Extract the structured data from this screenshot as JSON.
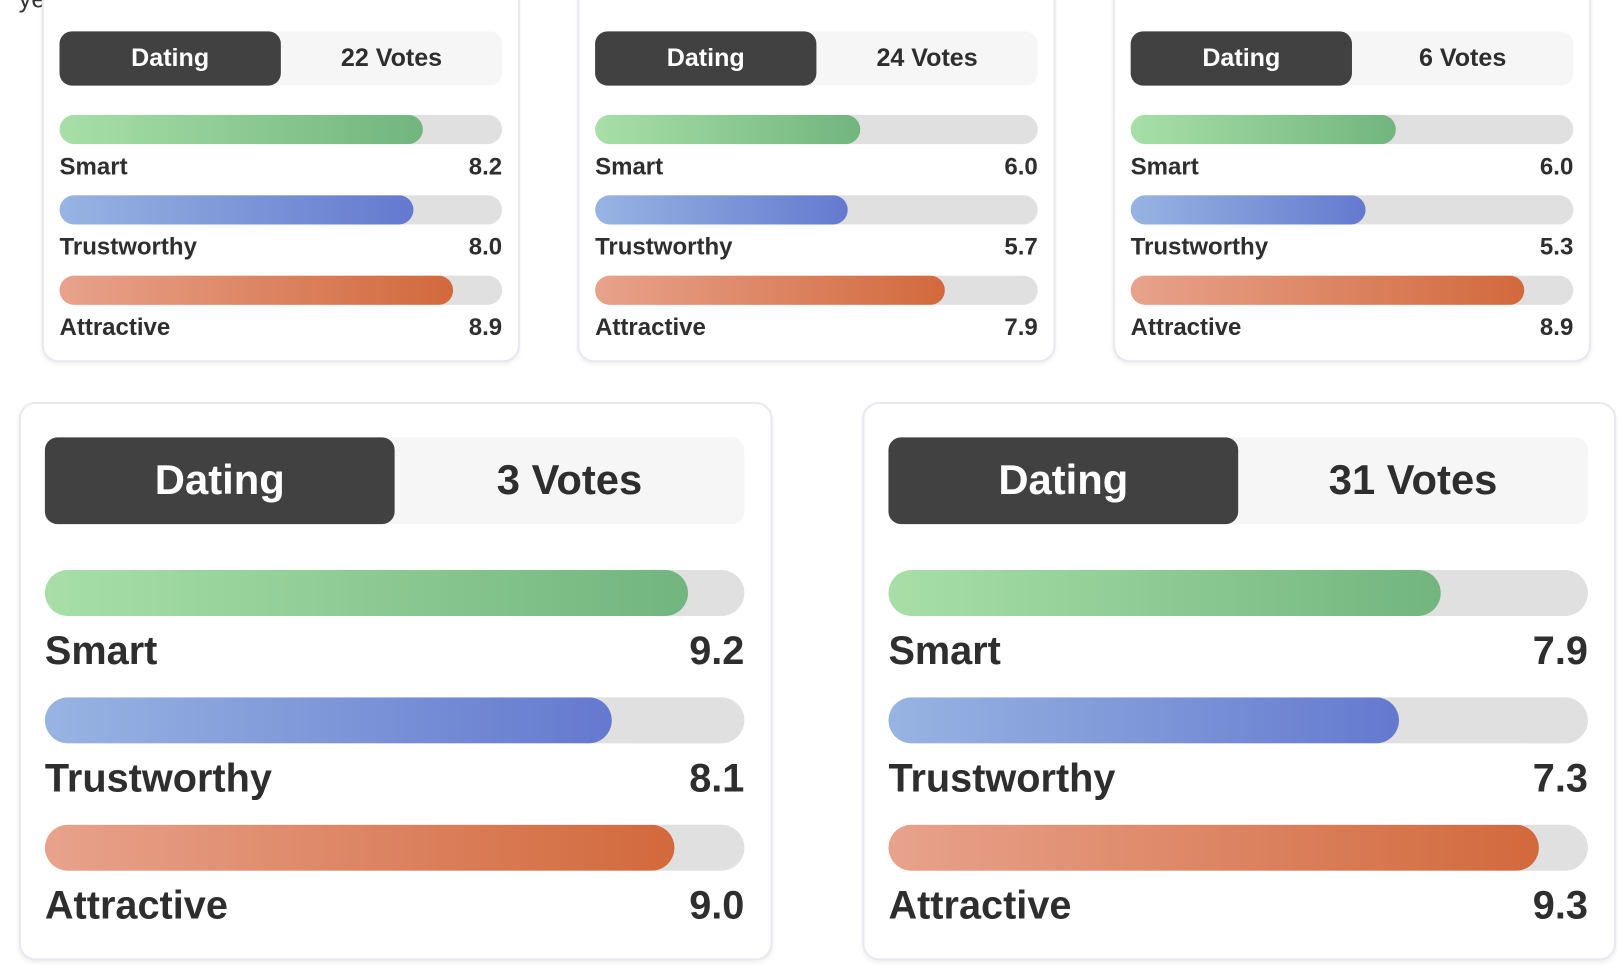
{
  "caption": "yeah.",
  "xlim": [
    0,
    10
  ],
  "colors": [
    [
      "#a8dfa8",
      "#72b57e"
    ],
    [
      "#97b4e2",
      "#6479cf"
    ],
    [
      "#e8a28c",
      "#d2693c"
    ]
  ],
  "cards": [
    {
      "category": "Dating",
      "votes": "22 Votes",
      "ratings": [
        {
          "name": "Smart",
          "value": 8.2,
          "label": "8.2"
        },
        {
          "name": "Trustworthy",
          "value": 8,
          "label": "8.0"
        },
        {
          "name": "Attractive",
          "value": 8.9,
          "label": "8.9"
        }
      ]
    },
    {
      "category": "Dating",
      "votes": "24 Votes",
      "ratings": [
        {
          "name": "Smart",
          "value": 6,
          "label": "6.0"
        },
        {
          "name": "Trustworthy",
          "value": 5.7,
          "label": "5.7"
        },
        {
          "name": "Attractive",
          "value": 7.9,
          "label": "7.9"
        }
      ]
    },
    {
      "category": "Dating",
      "votes": "6 Votes",
      "ratings": [
        {
          "name": "Smart",
          "value": 6,
          "label": "6.0"
        },
        {
          "name": "Trustworthy",
          "value": 5.3,
          "label": "5.3"
        },
        {
          "name": "Attractive",
          "value": 8.9,
          "label": "8.9"
        }
      ]
    },
    {
      "category": "Dating",
      "votes": "3 Votes",
      "ratings": [
        {
          "name": "Smart",
          "value": 9.2,
          "label": "9.2"
        },
        {
          "name": "Trustworthy",
          "value": 8.1,
          "label": "8.1"
        },
        {
          "name": "Attractive",
          "value": 9,
          "label": "9.0"
        }
      ]
    },
    {
      "category": "Dating",
      "votes": "31 Votes",
      "ratings": [
        {
          "name": "Smart",
          "value": 7.9,
          "label": "7.9"
        },
        {
          "name": "Trustworthy",
          "value": 7.3,
          "label": "7.3"
        },
        {
          "name": "Attractive",
          "value": 9.3,
          "label": "9.3"
        }
      ]
    }
  ]
}
